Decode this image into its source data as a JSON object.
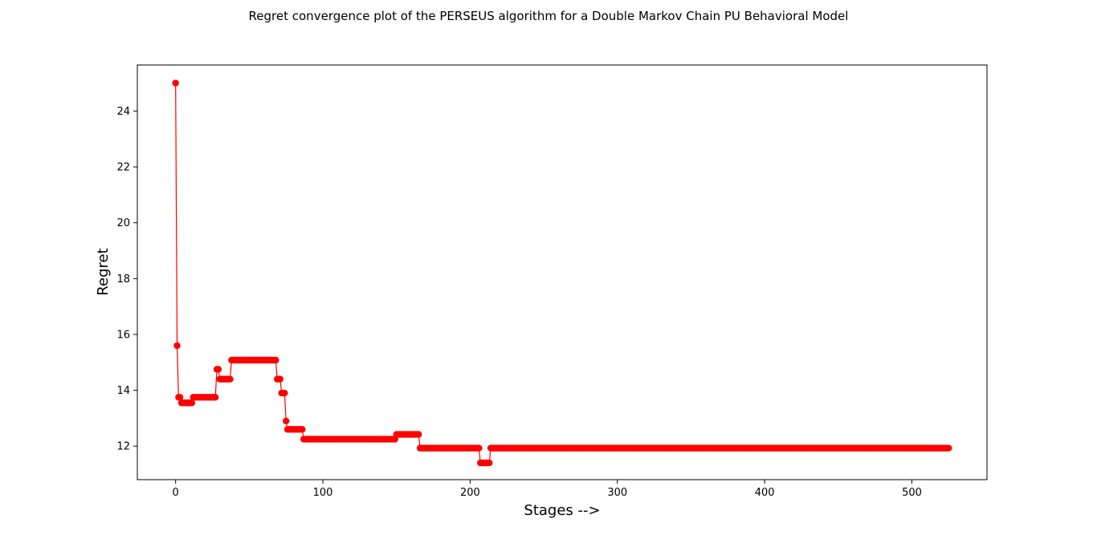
{
  "chart_data": {
    "type": "line",
    "title": "Regret convergence plot of the PERSEUS algorithm for a Double Markov Chain PU Behavioral Model",
    "xlabel": "Stages -->",
    "ylabel": "Regret",
    "xlim": [
      -26,
      551
    ],
    "ylim": [
      10.8,
      25.65
    ],
    "xticks": [
      0,
      100,
      200,
      300,
      400,
      500
    ],
    "yticks": [
      12,
      14,
      16,
      18,
      20,
      22,
      24
    ],
    "grid": false,
    "legend": "none",
    "series": [
      {
        "color": "#ff0000",
        "marker": "circle",
        "segments": [
          {
            "from": 0,
            "to": 0,
            "value": 25.0
          },
          {
            "from": 1,
            "to": 1,
            "value": 15.6
          },
          {
            "from": 2,
            "to": 3,
            "value": 13.75
          },
          {
            "from": 4,
            "to": 11,
            "value": 13.55
          },
          {
            "from": 12,
            "to": 27,
            "value": 13.75
          },
          {
            "from": 28,
            "to": 29,
            "value": 14.75
          },
          {
            "from": 30,
            "to": 37,
            "value": 14.4
          },
          {
            "from": 38,
            "to": 68,
            "value": 15.08
          },
          {
            "from": 69,
            "to": 71,
            "value": 14.4
          },
          {
            "from": 72,
            "to": 74,
            "value": 13.9
          },
          {
            "from": 75,
            "to": 75,
            "value": 12.9
          },
          {
            "from": 76,
            "to": 86,
            "value": 12.6
          },
          {
            "from": 87,
            "to": 149,
            "value": 12.25
          },
          {
            "from": 150,
            "to": 165,
            "value": 12.42
          },
          {
            "from": 166,
            "to": 206,
            "value": 11.93
          },
          {
            "from": 207,
            "to": 213,
            "value": 11.4
          },
          {
            "from": 214,
            "to": 525,
            "value": 11.93
          }
        ]
      }
    ]
  }
}
